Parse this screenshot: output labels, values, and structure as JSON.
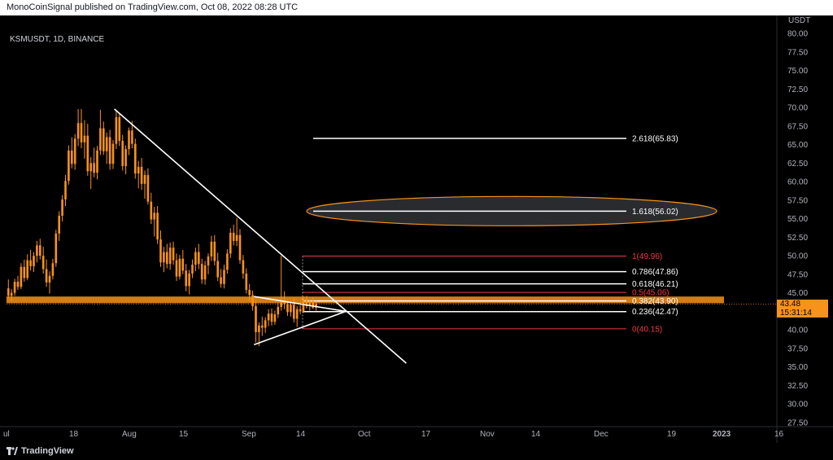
{
  "header": {
    "published": "MonoCoinSignal published on TradingView.com, Oct 08, 2022 08:28 UTC"
  },
  "symbol_info": "KSMUSDT, 1D, BINANCE",
  "footer": {
    "brand": "TradingView"
  },
  "colors": {
    "bull": "#f7931a",
    "bear": "#f7931a",
    "fib_red": "#f23645",
    "fib_white": "#ffffff",
    "zone": "#f7931a"
  },
  "price_tag": {
    "price": "43.48",
    "countdown": "15:31:14"
  },
  "chart_data": {
    "type": "candlestick",
    "currency": "USDT",
    "y_axis": {
      "min": 27.5,
      "max": 80.0,
      "ticks": [
        "80.00",
        "77.50",
        "75.00",
        "72.50",
        "70.00",
        "67.50",
        "65.00",
        "62.50",
        "60.00",
        "57.50",
        "55.00",
        "52.50",
        "50.00",
        "47.50",
        "45.00",
        "42.50",
        "40.00",
        "37.50",
        "35.00",
        "32.50",
        "30.00",
        "27.50"
      ]
    },
    "x_axis": {
      "labels": [
        "ul",
        "18",
        "Aug",
        "15",
        "Sep",
        "14",
        "Oct",
        "17",
        "Nov",
        "14",
        "Dec",
        "19",
        "2023",
        "16"
      ]
    },
    "fib_levels": [
      {
        "label": "2.618(65.83)",
        "value": 65.83,
        "color": "white"
      },
      {
        "label": "1.618(56.02)",
        "value": 56.02,
        "color": "white"
      },
      {
        "label": "1(49.96)",
        "value": 49.96,
        "color": "red"
      },
      {
        "label": "0.786(47.86)",
        "value": 47.86,
        "color": "white"
      },
      {
        "label": "0.618(46.21)",
        "value": 46.21,
        "color": "white"
      },
      {
        "label": "0.5(45.06)",
        "value": 45.06,
        "color": "red"
      },
      {
        "label": "0.382(43.90)",
        "value": 43.9,
        "color": "white"
      },
      {
        "label": "0.236(42.47)",
        "value": 42.47,
        "color": "white"
      },
      {
        "label": "0(40.15)",
        "value": 40.15,
        "color": "red"
      }
    ],
    "support_zone": {
      "low": 43.6,
      "high": 44.5
    },
    "current_price": 43.48,
    "candles": [
      [
        45.6,
        46.8,
        44.3,
        44.6
      ],
      [
        44.6,
        45.5,
        43.9,
        45.0
      ],
      [
        45.0,
        46.9,
        44.6,
        46.5
      ],
      [
        46.5,
        47.3,
        45.4,
        45.8
      ],
      [
        45.8,
        49.0,
        45.5,
        48.5
      ],
      [
        48.5,
        49.5,
        46.5,
        47.0
      ],
      [
        47.0,
        50.2,
        46.7,
        49.4
      ],
      [
        49.4,
        50.8,
        48.0,
        48.6
      ],
      [
        48.6,
        50.5,
        47.8,
        50.0
      ],
      [
        50.0,
        52.0,
        49.1,
        51.4
      ],
      [
        51.4,
        52.3,
        49.5,
        50.0
      ],
      [
        50.0,
        51.2,
        47.6,
        48.2
      ],
      [
        48.2,
        49.5,
        45.8,
        46.4
      ],
      [
        46.4,
        47.9,
        44.9,
        47.3
      ],
      [
        47.3,
        49.6,
        46.8,
        49.0
      ],
      [
        49.0,
        53.5,
        48.5,
        53.0
      ],
      [
        53.0,
        56.0,
        52.0,
        55.4
      ],
      [
        55.4,
        58.2,
        54.6,
        57.6
      ],
      [
        57.6,
        60.9,
        56.7,
        60.1
      ],
      [
        60.1,
        64.9,
        59.6,
        64.2
      ],
      [
        64.2,
        66.0,
        61.8,
        62.4
      ],
      [
        62.4,
        66.4,
        61.6,
        65.8
      ],
      [
        65.8,
        69.8,
        64.8,
        67.9
      ],
      [
        67.9,
        69.8,
        64.5,
        65.3
      ],
      [
        65.3,
        68.3,
        63.1,
        66.2
      ],
      [
        66.2,
        67.8,
        60.8,
        61.4
      ],
      [
        61.4,
        63.3,
        59.0,
        62.5
      ],
      [
        62.5,
        64.6,
        60.6,
        61.2
      ],
      [
        61.2,
        64.8,
        60.3,
        64.2
      ],
      [
        64.2,
        69.7,
        63.6,
        67.2
      ],
      [
        67.2,
        68.1,
        63.6,
        64.1
      ],
      [
        64.1,
        66.6,
        62.4,
        66.0
      ],
      [
        66.0,
        67.0,
        61.6,
        62.4
      ],
      [
        62.4,
        65.6,
        61.7,
        65.1
      ],
      [
        65.1,
        69.5,
        64.4,
        68.7
      ],
      [
        68.7,
        69.3,
        64.8,
        65.5
      ],
      [
        65.5,
        66.3,
        61.5,
        62.1
      ],
      [
        62.1,
        64.9,
        61.0,
        64.4
      ],
      [
        64.4,
        67.3,
        63.6,
        66.9
      ],
      [
        66.9,
        68.2,
        64.5,
        65.1
      ],
      [
        65.1,
        65.8,
        60.4,
        61.1
      ],
      [
        61.1,
        62.8,
        59.1,
        62.0
      ],
      [
        62.0,
        63.2,
        58.9,
        59.7
      ],
      [
        59.7,
        61.5,
        57.7,
        60.9
      ],
      [
        60.9,
        61.8,
        56.9,
        57.3
      ],
      [
        57.3,
        58.5,
        54.3,
        54.9
      ],
      [
        54.9,
        56.6,
        52.6,
        55.8
      ],
      [
        55.8,
        56.7,
        51.6,
        52.2
      ],
      [
        52.2,
        53.4,
        48.5,
        49.1
      ],
      [
        49.1,
        51.2,
        47.8,
        50.5
      ],
      [
        50.5,
        51.6,
        48.3,
        48.9
      ],
      [
        48.9,
        51.8,
        48.1,
        51.1
      ],
      [
        51.1,
        51.9,
        48.8,
        49.4
      ],
      [
        49.4,
        50.3,
        46.6,
        47.2
      ],
      [
        47.2,
        50.1,
        46.8,
        49.6
      ],
      [
        49.6,
        50.8,
        47.5,
        48.0
      ],
      [
        48.0,
        48.9,
        45.2,
        45.9
      ],
      [
        45.9,
        48.1,
        44.8,
        47.6
      ],
      [
        47.6,
        49.5,
        47.0,
        48.8
      ],
      [
        48.8,
        51.1,
        47.9,
        50.5
      ],
      [
        50.5,
        51.6,
        48.2,
        48.9
      ],
      [
        48.9,
        49.6,
        46.2,
        46.8
      ],
      [
        46.8,
        49.3,
        46.1,
        48.7
      ],
      [
        48.7,
        50.3,
        47.5,
        49.9
      ],
      [
        49.9,
        52.7,
        49.3,
        51.9
      ],
      [
        51.9,
        52.8,
        48.7,
        49.3
      ],
      [
        49.3,
        50.4,
        46.6,
        47.1
      ],
      [
        47.1,
        48.2,
        45.7,
        46.2
      ],
      [
        46.2,
        48.8,
        45.6,
        48.1
      ],
      [
        48.1,
        50.9,
        47.6,
        50.3
      ],
      [
        50.3,
        53.7,
        49.7,
        53.1
      ],
      [
        53.1,
        54.2,
        51.4,
        52.0
      ],
      [
        52.0,
        55.1,
        51.3,
        52.8
      ],
      [
        52.8,
        53.6,
        48.9,
        49.4
      ],
      [
        49.4,
        50.1,
        46.9,
        47.6
      ],
      [
        47.6,
        48.3,
        44.9,
        45.4
      ],
      [
        45.4,
        46.2,
        43.9,
        44.7
      ],
      [
        44.7,
        45.3,
        42.6,
        43.2
      ],
      [
        43.2,
        43.9,
        38.3,
        39.7
      ],
      [
        39.7,
        41.0,
        37.8,
        40.6
      ],
      [
        40.6,
        41.8,
        39.2,
        40.3
      ],
      [
        40.3,
        41.7,
        39.6,
        41.3
      ],
      [
        41.3,
        42.8,
        40.5,
        42.2
      ],
      [
        42.2,
        42.9,
        40.6,
        41.1
      ],
      [
        41.1,
        42.6,
        40.7,
        42.1
      ],
      [
        42.1,
        43.6,
        41.6,
        43.1
      ],
      [
        43.1,
        50.0,
        42.6,
        43.8
      ],
      [
        43.8,
        45.2,
        42.8,
        43.5
      ],
      [
        43.5,
        44.0,
        41.9,
        42.4
      ],
      [
        42.4,
        43.9,
        41.8,
        43.4
      ],
      [
        43.4,
        44.3,
        41.0,
        41.5
      ],
      [
        41.5,
        43.2,
        40.4,
        42.8
      ],
      [
        42.8,
        43.7,
        42.1,
        42.5
      ],
      [
        42.5,
        44.5,
        42.3,
        44.1
      ],
      [
        44.1,
        44.6,
        42.9,
        43.2
      ],
      [
        43.2,
        44.1,
        42.6,
        43.9
      ],
      [
        43.9,
        44.4,
        42.8,
        43.0
      ],
      [
        43.0,
        43.9,
        42.6,
        43.48
      ]
    ],
    "trendlines": [
      {
        "from": {
          "bar": 34,
          "price": 69.8
        },
        "to": {
          "bar": 126,
          "price": 35.5
        }
      },
      {
        "from": {
          "bar": 78,
          "price": 38.0
        },
        "to": {
          "bar": 107,
          "price": 42.5
        }
      },
      {
        "from": {
          "bar": 78,
          "price": 44.5
        },
        "to": {
          "bar": 107,
          "price": 42.5
        }
      }
    ]
  }
}
